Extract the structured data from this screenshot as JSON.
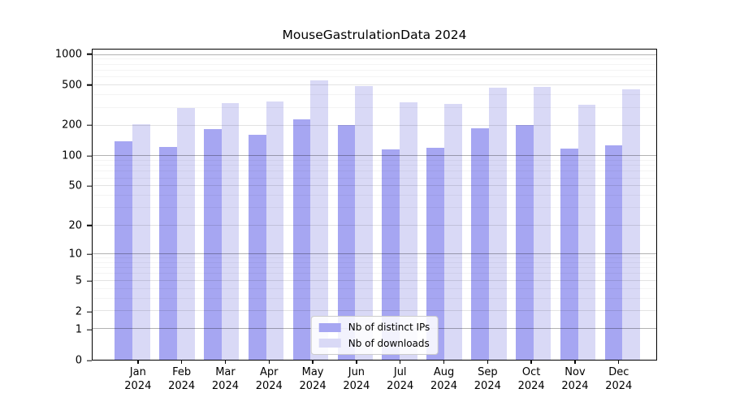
{
  "chart_data": {
    "type": "bar",
    "title": "MouseGastrulationData 2024",
    "xlabel": "",
    "ylabel": "",
    "yscale": "log1p",
    "ylim_top": 1131,
    "grid": true,
    "legend_position": "lower center",
    "yticks": [
      0,
      1,
      2,
      5,
      10,
      20,
      50,
      100,
      200,
      500,
      1000
    ],
    "grid_major": [
      1,
      10,
      100,
      1000
    ],
    "grid_mid": [
      2,
      5,
      20,
      50,
      200,
      500
    ],
    "grid_minor": [
      3,
      4,
      6,
      7,
      8,
      9,
      30,
      40,
      60,
      70,
      80,
      90,
      300,
      400,
      600,
      700,
      800,
      900
    ],
    "categories": [
      {
        "month": "Jan",
        "year": "2024"
      },
      {
        "month": "Feb",
        "year": "2024"
      },
      {
        "month": "Mar",
        "year": "2024"
      },
      {
        "month": "Apr",
        "year": "2024"
      },
      {
        "month": "May",
        "year": "2024"
      },
      {
        "month": "Jun",
        "year": "2024"
      },
      {
        "month": "Jul",
        "year": "2024"
      },
      {
        "month": "Aug",
        "year": "2024"
      },
      {
        "month": "Sep",
        "year": "2024"
      },
      {
        "month": "Oct",
        "year": "2024"
      },
      {
        "month": "Nov",
        "year": "2024"
      },
      {
        "month": "Dec",
        "year": "2024"
      }
    ],
    "series": [
      {
        "name": "Nb of distinct IPs",
        "color": "#a6a6f2",
        "values": [
          141,
          123,
          184,
          162,
          231,
          204,
          117,
          120,
          188,
          205,
          118,
          127
        ]
      },
      {
        "name": "Nb of downloads",
        "color": "#d9d9f6",
        "values": [
          206,
          302,
          333,
          350,
          560,
          496,
          343,
          327,
          478,
          484,
          323,
          458
        ]
      }
    ]
  },
  "colors": {
    "background": "#ffffff",
    "axis": "#000000",
    "grid_major": "#b2b2b2",
    "grid_mid": "#e2e2e2",
    "grid_minor": "#f2f2f2"
  }
}
